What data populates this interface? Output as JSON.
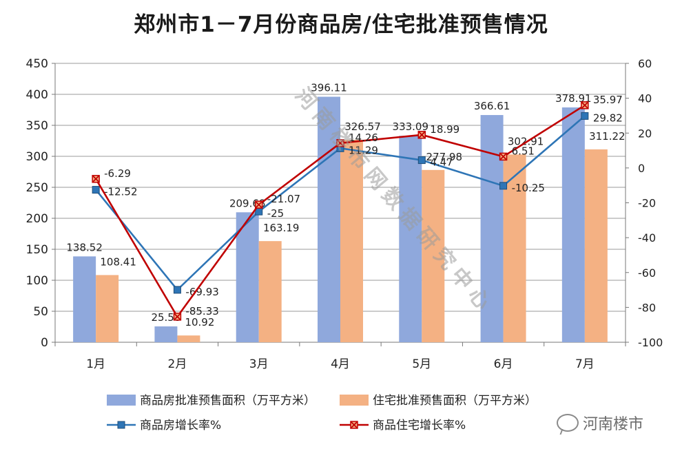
{
  "title": "郑州市1－7月份商品房/住宅批准预售情况",
  "chart_data": {
    "type": "bar",
    "categories": [
      "1月",
      "2月",
      "3月",
      "4月",
      "5月",
      "6月",
      "7月"
    ],
    "series": [
      {
        "name": "商品房批准预售面积（万平方米）",
        "type": "bar",
        "axis": "left",
        "color": "#8fa8dc",
        "values": [
          138.52,
          25.58,
          209.68,
          396.11,
          333.09,
          366.61,
          378.91
        ]
      },
      {
        "name": "住宅批准预售面积（万平方米）",
        "type": "bar",
        "axis": "left",
        "color": "#f4b183",
        "values": [
          108.41,
          10.92,
          163.19,
          326.57,
          277.98,
          302.91,
          311.22
        ]
      },
      {
        "name": "商品房增长率%",
        "type": "line",
        "axis": "right",
        "color": "#2e75b6",
        "values": [
          -12.52,
          -69.93,
          -25,
          11.29,
          4.47,
          -10.25,
          29.82
        ]
      },
      {
        "name": "商品住宅增长率%",
        "type": "line",
        "axis": "right",
        "color": "#c00000",
        "values": [
          -6.29,
          -85.33,
          -21.07,
          14.26,
          18.99,
          6.51,
          35.97
        ]
      }
    ],
    "left_axis": {
      "min": 0,
      "max": 450,
      "step": 50,
      "ticks": [
        "0",
        "50",
        "100",
        "150",
        "200",
        "250",
        "300",
        "350",
        "400",
        "450"
      ]
    },
    "right_axis": {
      "min": -100,
      "max": 60,
      "step": 20,
      "ticks": [
        "-100",
        "-80",
        "-60",
        "-40",
        "-20",
        "0",
        "20",
        "40",
        "60"
      ]
    },
    "grid": true,
    "legend_position": "bottom"
  },
  "watermark": {
    "diagonal_text": "河南楼市网数据研究中心",
    "logo_text": "河南楼市"
  }
}
